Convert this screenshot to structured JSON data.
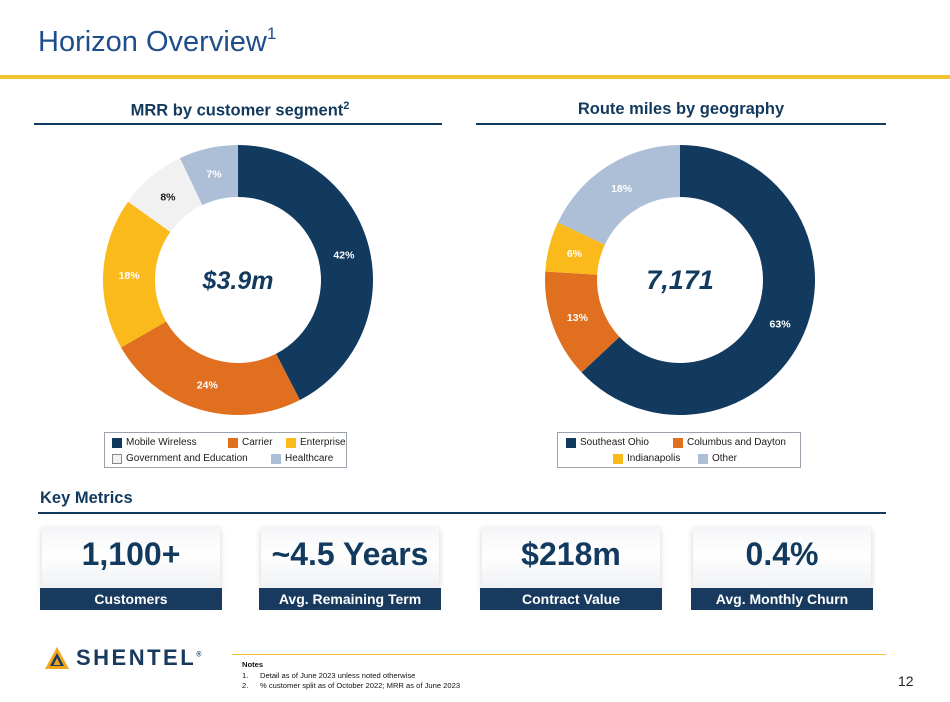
{
  "header": {
    "title": "Horizon Overview",
    "title_sup": "1"
  },
  "chart_data": [
    {
      "type": "pie",
      "title": "MRR by customer segment",
      "title_sup": "2",
      "center_label": "$3.9m",
      "categories": [
        "Mobile Wireless",
        "Carrier",
        "Enterprise",
        "Government and Education",
        "Healthcare"
      ],
      "values": [
        42,
        24,
        18,
        8,
        7
      ],
      "labels": [
        "42%",
        "24%",
        "18%",
        "8%",
        "7%"
      ],
      "colors": [
        "#123a5e",
        "#e07020",
        "#fbba1c",
        "#f1f1f1",
        "#adbfd6"
      ],
      "label_colors": [
        "#ffffff",
        "#ffffff",
        "#ffffff",
        "#1a1a1a",
        "#ffffff"
      ]
    },
    {
      "type": "pie",
      "title": "Route miles by geography",
      "center_label": "7,171",
      "categories": [
        "Southeast Ohio",
        "Columbus and Dayton",
        "Indianapolis",
        "Other"
      ],
      "values": [
        63,
        13,
        6,
        18
      ],
      "labels": [
        "63%",
        "13%",
        "6%",
        "18%"
      ],
      "colors": [
        "#123a5e",
        "#e07020",
        "#fbba1c",
        "#adbfd6"
      ],
      "label_colors": [
        "#ffffff",
        "#ffffff",
        "#ffffff",
        "#ffffff"
      ]
    }
  ],
  "key_metrics": {
    "title": "Key Metrics",
    "cards": [
      {
        "value": "1,100+",
        "label": "Customers"
      },
      {
        "value": "~4.5 Years",
        "label": "Avg. Remaining Term"
      },
      {
        "value": "$218m",
        "label": "Contract Value"
      },
      {
        "value": "0.4%",
        "label": "Avg. Monthly Churn"
      }
    ]
  },
  "footer": {
    "logo": "SHENTEL",
    "logo_mark": "®",
    "notes_title": "Notes",
    "notes": [
      {
        "num": "1.",
        "text": "Detail as of June 2023 unless noted otherwise"
      },
      {
        "num": "2.",
        "text": "% customer split as of October 2022; MRR as of June 2023"
      }
    ],
    "page_number": "12"
  }
}
